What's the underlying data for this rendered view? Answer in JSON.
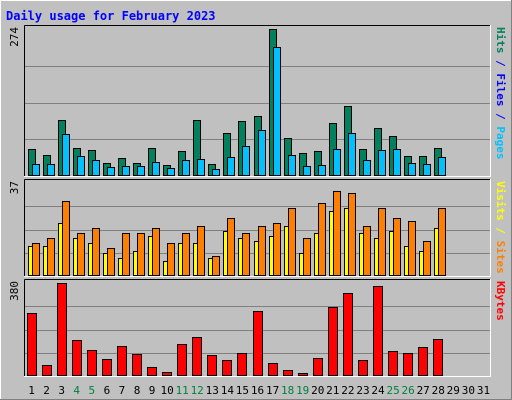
{
  "chart_data": {
    "type": "bar",
    "title": "Daily usage for February 2023",
    "x": [
      "1",
      "2",
      "3",
      "4",
      "5",
      "6",
      "7",
      "8",
      "9",
      "10",
      "11",
      "12",
      "13",
      "14",
      "15",
      "16",
      "17",
      "18",
      "19",
      "20",
      "21",
      "22",
      "23",
      "24",
      "25",
      "26",
      "27",
      "28",
      "29",
      "30",
      "31"
    ],
    "x_colors": [
      "#000000",
      "#000000",
      "#000000",
      "#008040",
      "#008040",
      "#000000",
      "#000000",
      "#000000",
      "#000000",
      "#000000",
      "#008040",
      "#008040",
      "#000000",
      "#000000",
      "#000000",
      "#000000",
      "#000000",
      "#008040",
      "#008040",
      "#000000",
      "#000000",
      "#000000",
      "#000000",
      "#000000",
      "#008040",
      "#008040",
      "#000000",
      "#000000",
      "#000000",
      "#000000",
      "#000000"
    ],
    "panels": [
      {
        "ymax": 274,
        "ymax_label": "274",
        "right_label_parts": [
          {
            "text": "Hits",
            "color": "#00805c"
          },
          {
            "text": " / ",
            "color": "#0000ff"
          },
          {
            "text": "Files",
            "color": "#0000ff"
          },
          {
            "text": " / ",
            "color": "#0000ff"
          },
          {
            "text": "Pages",
            "color": "#00c0ff"
          }
        ],
        "series": [
          {
            "key": "hits",
            "color": "#00805c",
            "values": [
              51,
              40,
              105,
              53,
              48,
              24,
              33,
              25,
              52,
              20,
              47,
              104,
              22,
              81,
              103,
              111,
              274,
              71,
              43,
              46,
              98,
              130,
              50,
              89,
              74,
              38,
              37,
              53,
              0,
              0,
              0
            ]
          },
          {
            "key": "files",
            "color": "#00c0ff",
            "values": [
              23,
              23,
              78,
              37,
              30,
              17,
              18,
              19,
              26,
              14,
              29,
              31,
              13,
              36,
              56,
              85,
              241,
              39,
              19,
              21,
              51,
              80,
              30,
              49,
              51,
              24,
              22,
              35,
              0,
              0,
              0
            ]
          }
        ]
      },
      {
        "ymax": 37,
        "ymax_label": "37",
        "right_label_parts": [
          {
            "text": "Visits",
            "color": "#ffff00"
          },
          {
            "text": " / ",
            "color": "#ffff00"
          },
          {
            "text": "Sites",
            "color": "#ff8000"
          }
        ],
        "series": [
          {
            "key": "visits",
            "color": "#ffff00",
            "values": [
              12,
              12,
              21,
              15,
              13,
              9,
              7,
              10,
              16,
              6,
              13,
              13,
              7,
              18,
              15,
              14,
              16,
              20,
              9,
              17,
              26,
              27,
              17,
              15,
              18,
              12,
              10,
              19,
              0,
              0,
              0
            ]
          },
          {
            "key": "sites",
            "color": "#ff8000",
            "values": [
              13,
              15,
              30,
              17,
              19,
              11,
              17,
              17,
              19,
              13,
              17,
              20,
              8,
              23,
              17,
              20,
              21,
              27,
              15,
              29,
              34,
              33,
              20,
              27,
              23,
              22,
              14,
              27,
              0,
              0,
              0
            ]
          }
        ]
      },
      {
        "ymax": 380,
        "ymax_label": "380",
        "right_label_parts": [
          {
            "text": "KBytes",
            "color": "#ff0000"
          }
        ],
        "series": [
          {
            "key": "kbytes",
            "color": "#ff0000",
            "values": [
              257,
              45,
              380,
              146,
              106,
              70,
              123,
              89,
              36,
              16,
              131,
              161,
              86,
              65,
              96,
              265,
              55,
              25,
              11,
              74,
              280,
              341,
              66,
              369,
              104,
              95,
              120,
              150,
              0,
              0,
              0
            ]
          }
        ]
      }
    ]
  }
}
